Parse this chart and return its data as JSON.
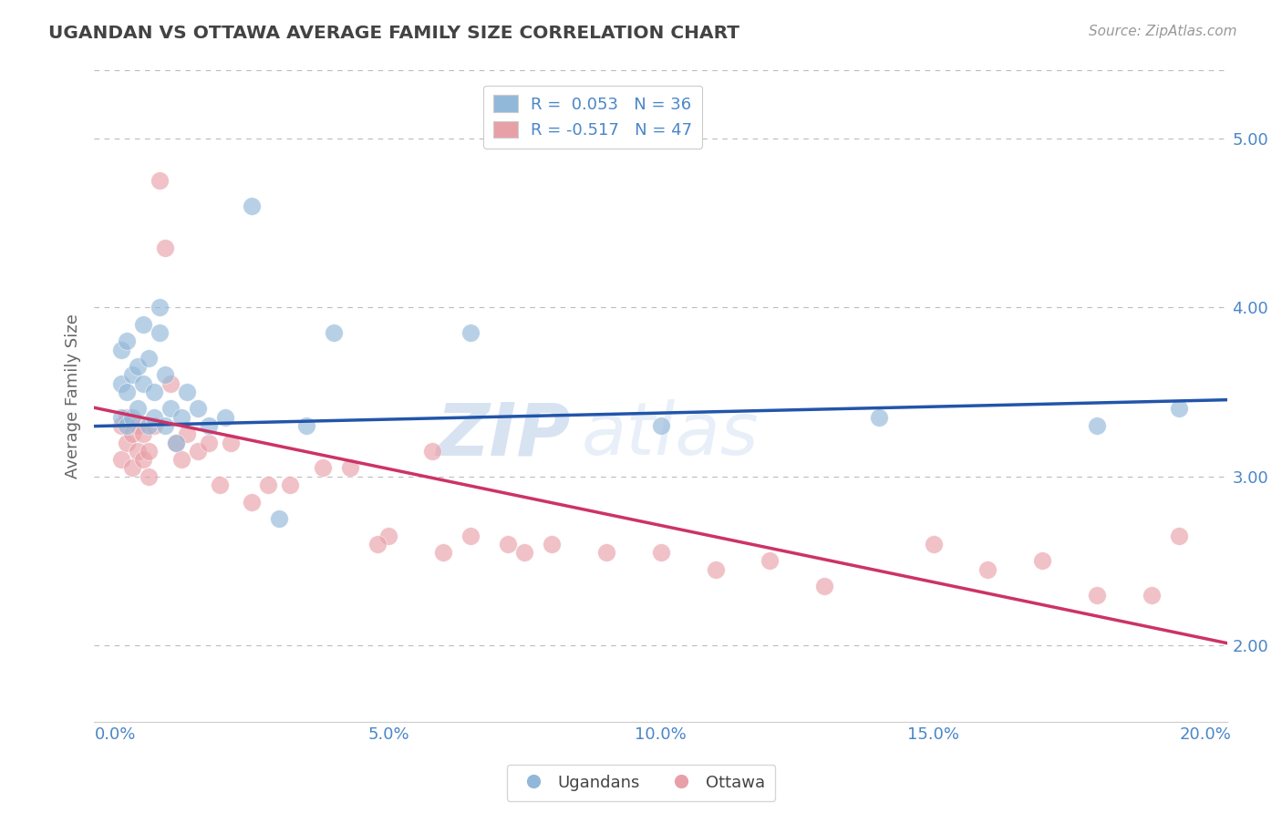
{
  "title": "UGANDAN VS OTTAWA AVERAGE FAMILY SIZE CORRELATION CHART",
  "source": "Source: ZipAtlas.com",
  "ylabel": "Average Family Size",
  "xlabel_ticks": [
    "0.0%",
    "",
    "",
    "",
    "",
    "5.0%",
    "",
    "",
    "",
    "",
    "10.0%",
    "",
    "",
    "",
    "",
    "15.0%",
    "",
    "",
    "",
    "",
    "20.0%"
  ],
  "xlabel_vals": [
    0.0,
    0.01,
    0.02,
    0.03,
    0.04,
    0.05,
    0.06,
    0.07,
    0.08,
    0.09,
    0.1,
    0.11,
    0.12,
    0.13,
    0.14,
    0.15,
    0.16,
    0.17,
    0.18,
    0.19,
    0.2
  ],
  "xlabel_ticks_show": [
    "0.0%",
    "5.0%",
    "10.0%",
    "15.0%",
    "20.0%"
  ],
  "xlabel_vals_show": [
    0.0,
    0.05,
    0.1,
    0.15,
    0.2
  ],
  "ylim": [
    1.55,
    5.4
  ],
  "xlim": [
    -0.004,
    0.204
  ],
  "yticks": [
    2.0,
    3.0,
    4.0,
    5.0
  ],
  "watermark": "ZIPatlas",
  "blue_color": "#92b8d9",
  "pink_color": "#e8a0a8",
  "blue_line_color": "#2255aa",
  "pink_line_color": "#cc3366",
  "title_color": "#434343",
  "axis_label_color": "#4a86c8",
  "legend_text_color": "#4a86c8",
  "blue_R": 0.053,
  "pink_R": -0.517,
  "blue_N": 36,
  "pink_N": 47,
  "ugandan_x": [
    0.001,
    0.001,
    0.001,
    0.002,
    0.002,
    0.002,
    0.003,
    0.003,
    0.004,
    0.004,
    0.005,
    0.005,
    0.006,
    0.006,
    0.007,
    0.007,
    0.008,
    0.008,
    0.009,
    0.009,
    0.01,
    0.011,
    0.012,
    0.013,
    0.015,
    0.017,
    0.02,
    0.025,
    0.03,
    0.035,
    0.04,
    0.065,
    0.1,
    0.14,
    0.18,
    0.195
  ],
  "ugandan_y": [
    3.35,
    3.55,
    3.75,
    3.3,
    3.5,
    3.8,
    3.35,
    3.6,
    3.4,
    3.65,
    3.55,
    3.9,
    3.3,
    3.7,
    3.35,
    3.5,
    3.85,
    4.0,
    3.3,
    3.6,
    3.4,
    3.2,
    3.35,
    3.5,
    3.4,
    3.3,
    3.35,
    4.6,
    2.75,
    3.3,
    3.85,
    3.85,
    3.3,
    3.35,
    3.3,
    3.4
  ],
  "ottawa_x": [
    0.001,
    0.001,
    0.002,
    0.002,
    0.003,
    0.003,
    0.004,
    0.004,
    0.005,
    0.005,
    0.006,
    0.006,
    0.007,
    0.008,
    0.009,
    0.01,
    0.011,
    0.012,
    0.013,
    0.015,
    0.017,
    0.019,
    0.021,
    0.025,
    0.028,
    0.032,
    0.038,
    0.043,
    0.05,
    0.058,
    0.065,
    0.072,
    0.08,
    0.09,
    0.1,
    0.11,
    0.12,
    0.13,
    0.15,
    0.16,
    0.17,
    0.18,
    0.19,
    0.195,
    0.048,
    0.06,
    0.075
  ],
  "ottawa_y": [
    3.3,
    3.1,
    3.2,
    3.35,
    3.25,
    3.05,
    3.15,
    3.3,
    3.1,
    3.25,
    3.15,
    3.0,
    3.3,
    4.75,
    4.35,
    3.55,
    3.2,
    3.1,
    3.25,
    3.15,
    3.2,
    2.95,
    3.2,
    2.85,
    2.95,
    2.95,
    3.05,
    3.05,
    2.65,
    3.15,
    2.65,
    2.6,
    2.6,
    2.55,
    2.55,
    2.45,
    2.5,
    2.35,
    2.6,
    2.45,
    2.5,
    2.3,
    2.3,
    2.65,
    2.6,
    2.55,
    2.55
  ]
}
